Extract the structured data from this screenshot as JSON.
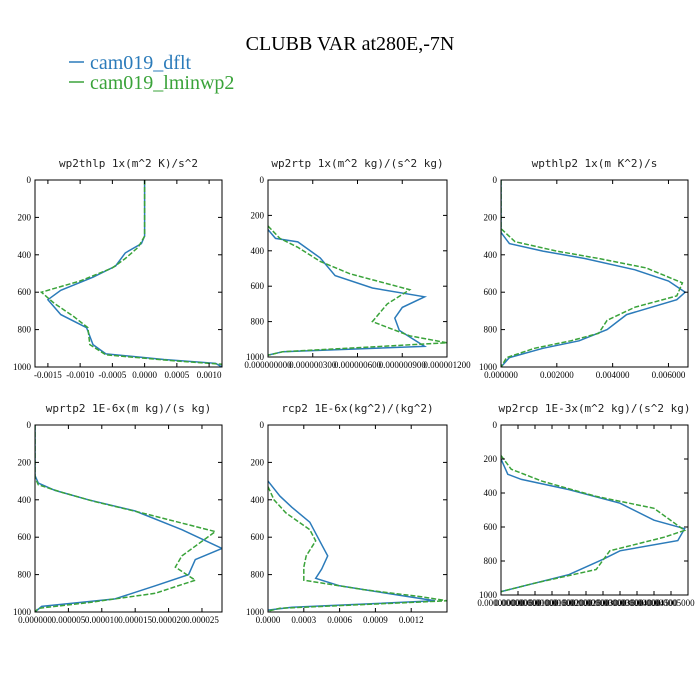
{
  "figure": {
    "title": "CLUBB VAR at280E,-7N",
    "legend": [
      {
        "label": "cam019_dflt",
        "color": "#2b7bba",
        "dash": "none"
      },
      {
        "label": "cam019_lminwp2",
        "color": "#3aa33a",
        "dash": "dashed"
      }
    ]
  },
  "chart_data": [
    {
      "type": "line",
      "title": "wp2thlp  1x(m^2 K)/s^2",
      "xlim": [
        -0.0017,
        0.0012
      ],
      "ylim": [
        1000,
        0
      ],
      "xticks": [
        -0.0015,
        -0.001,
        -0.0005,
        0,
        0.0005,
        0.001
      ],
      "xticklabels": [
        "-0.0015",
        "-0.0010",
        "-0.0005",
        "0.0000",
        "0.0005",
        "0.0010"
      ],
      "yticks": [
        0,
        200,
        400,
        600,
        800,
        1000
      ],
      "series": [
        {
          "name": "cam019_dflt",
          "points": [
            [
              0,
              0
            ],
            [
              0,
              300
            ],
            [
              -5e-05,
              340
            ],
            [
              -0.0003,
              390
            ],
            [
              -0.00045,
              460
            ],
            [
              -0.0008,
              520
            ],
            [
              -0.0013,
              590
            ],
            [
              -0.0015,
              640
            ],
            [
              -0.0013,
              720
            ],
            [
              -0.0009,
              790
            ],
            [
              -0.0008,
              880
            ],
            [
              -0.0006,
              930
            ],
            [
              0.0003,
              960
            ],
            [
              0.0011,
              980
            ],
            [
              0.0012,
              1000
            ]
          ]
        },
        {
          "name": "cam019_lminwp2",
          "points": [
            [
              0,
              0
            ],
            [
              0,
              300
            ],
            [
              -0.0001,
              360
            ],
            [
              -0.0003,
              420
            ],
            [
              -0.0005,
              470
            ],
            [
              -0.001,
              540
            ],
            [
              -0.0016,
              600
            ],
            [
              -0.0014,
              660
            ],
            [
              -0.0011,
              730
            ],
            [
              -0.00088,
              790
            ],
            [
              -0.00085,
              880
            ],
            [
              -0.0006,
              935
            ],
            [
              0.0004,
              965
            ],
            [
              0.0012,
              985
            ],
            [
              0.0012,
              1000
            ]
          ]
        }
      ]
    },
    {
      "type": "line",
      "title": "wp2rtp  1x(m^2 kg)/(s^2 kg)",
      "xlim": [
        0,
        1.2e-06
      ],
      "ylim": [
        1000,
        0
      ],
      "xticks": [
        0,
        3e-07,
        6e-07,
        9e-07,
        1.2e-06
      ],
      "xticklabels": [
        "0.000000000",
        "0.000000300",
        "0.000000600",
        "0.000000900",
        "0.000001200"
      ],
      "yticks": [
        0,
        200,
        400,
        600,
        800,
        1000
      ],
      "series": [
        {
          "name": "cam019_dflt",
          "points": [
            [
              0,
              280
            ],
            [
              5e-08,
              330
            ],
            [
              2e-07,
              350
            ],
            [
              3.5e-07,
              440
            ],
            [
              4.5e-07,
              540
            ],
            [
              7e-07,
              610
            ],
            [
              1.05e-06,
              660
            ],
            [
              9e-07,
              720
            ],
            [
              8.5e-07,
              780
            ],
            [
              8.8e-07,
              850
            ],
            [
              1.05e-06,
              940
            ],
            [
              1e-07,
              970
            ],
            [
              0,
              990
            ]
          ]
        },
        {
          "name": "cam019_lminwp2",
          "points": [
            [
              0,
              260
            ],
            [
              8e-08,
              330
            ],
            [
              2e-07,
              380
            ],
            [
              3.5e-07,
              460
            ],
            [
              5.5e-07,
              530
            ],
            [
              9.5e-07,
              620
            ],
            [
              8e-07,
              700
            ],
            [
              7e-07,
              800
            ],
            [
              9.5e-07,
              880
            ],
            [
              1.2e-06,
              920
            ],
            [
              1e-07,
              970
            ],
            [
              0,
              990
            ]
          ]
        }
      ]
    },
    {
      "type": "line",
      "title": "wpthlp2  1x(m K^2)/s",
      "xlim": [
        0,
        0.0067
      ],
      "ylim": [
        1000,
        0
      ],
      "xticks": [
        0,
        0.002,
        0.004,
        0.006
      ],
      "xticklabels": [
        "0.000000",
        "0.002000",
        "0.004000",
        "0.006000"
      ],
      "yticks": [
        0,
        200,
        400,
        600,
        800,
        1000
      ],
      "series": [
        {
          "name": "cam019_dflt",
          "points": [
            [
              0,
              0
            ],
            [
              0,
              280
            ],
            [
              0.0003,
              340
            ],
            [
              0.0015,
              380
            ],
            [
              0.003,
              420
            ],
            [
              0.0048,
              480
            ],
            [
              0.006,
              540
            ],
            [
              0.0066,
              600
            ],
            [
              0.0063,
              640
            ],
            [
              0.0045,
              720
            ],
            [
              0.0038,
              800
            ],
            [
              0.0028,
              860
            ],
            [
              0.0015,
              900
            ],
            [
              0.0003,
              950
            ],
            [
              0,
              1000
            ]
          ]
        },
        {
          "name": "cam019_lminwp2",
          "points": [
            [
              0,
              0
            ],
            [
              0,
              260
            ],
            [
              0.0005,
              330
            ],
            [
              0.002,
              380
            ],
            [
              0.0035,
              420
            ],
            [
              0.0052,
              470
            ],
            [
              0.0065,
              550
            ],
            [
              0.0063,
              620
            ],
            [
              0.0048,
              680
            ],
            [
              0.0038,
              750
            ],
            [
              0.0035,
              820
            ],
            [
              0.0025,
              860
            ],
            [
              0.0012,
              900
            ],
            [
              0.0002,
              950
            ],
            [
              0,
              1000
            ]
          ]
        }
      ]
    },
    {
      "type": "line",
      "title": "wprtp2  1E-6x(m kg)/(s kg)",
      "xlim": [
        0,
        2.8e-05
      ],
      "ylim": [
        1000,
        0
      ],
      "xticks": [
        0,
        5e-06,
        1e-05,
        1.5e-05,
        2e-05,
        2.5e-05
      ],
      "xticklabels": [
        "0.000000",
        "0.000005",
        "0.000010",
        "0.000015",
        "0.000020",
        "0.000025"
      ],
      "yticks": [
        0,
        200,
        400,
        600,
        800,
        1000
      ],
      "series": [
        {
          "name": "cam019_dflt",
          "points": [
            [
              0,
              0
            ],
            [
              0,
              270
            ],
            [
              5e-07,
              310
            ],
            [
              3e-06,
              350
            ],
            [
              8e-06,
              400
            ],
            [
              1.5e-05,
              460
            ],
            [
              2.2e-05,
              560
            ],
            [
              2.8e-05,
              660
            ],
            [
              2.4e-05,
              720
            ],
            [
              2.3e-05,
              800
            ],
            [
              1.8e-05,
              860
            ],
            [
              1.2e-05,
              930
            ],
            [
              1e-06,
              970
            ],
            [
              0,
              1000
            ]
          ]
        },
        {
          "name": "cam019_lminwp2",
          "points": [
            [
              0,
              0
            ],
            [
              0,
              280
            ],
            [
              5e-07,
              320
            ],
            [
              4e-06,
              360
            ],
            [
              9e-06,
              410
            ],
            [
              1.6e-05,
              470
            ],
            [
              2.7e-05,
              570
            ],
            [
              2.2e-05,
              700
            ],
            [
              2.1e-05,
              760
            ],
            [
              2.4e-05,
              830
            ],
            [
              1.8e-05,
              900
            ],
            [
              8e-06,
              950
            ],
            [
              5e-07,
              980
            ],
            [
              0,
              1000
            ]
          ]
        }
      ]
    },
    {
      "type": "line",
      "title": "rcp2  1E-6x(kg^2)/(kg^2)",
      "xlim": [
        0,
        0.0015
      ],
      "ylim": [
        1000,
        0
      ],
      "xticks": [
        0,
        0.0003,
        0.0006,
        0.0009,
        0.0012
      ],
      "xticklabels": [
        "0.0000",
        "0.0003",
        "0.0006",
        "0.0009",
        "0.0012"
      ],
      "yticks": [
        0,
        200,
        400,
        600,
        800,
        1000
      ],
      "series": [
        {
          "name": "cam019_dflt",
          "points": [
            [
              0,
              300
            ],
            [
              0.0001,
              380
            ],
            [
              0.0002,
              440
            ],
            [
              0.00035,
              520
            ],
            [
              0.00045,
              640
            ],
            [
              0.0005,
              700
            ],
            [
              0.00045,
              770
            ],
            [
              0.0004,
              820
            ],
            [
              0.0006,
              860
            ],
            [
              0.0011,
              910
            ],
            [
              0.0014,
              940
            ],
            [
              0.0002,
              975
            ],
            [
              0,
              990
            ]
          ]
        },
        {
          "name": "cam019_lminwp2",
          "points": [
            [
              0,
              330
            ],
            [
              5e-05,
              400
            ],
            [
              0.00015,
              470
            ],
            [
              0.00035,
              560
            ],
            [
              0.0004,
              620
            ],
            [
              0.00032,
              700
            ],
            [
              0.0003,
              760
            ],
            [
              0.0003,
              830
            ],
            [
              0.0008,
              880
            ],
            [
              0.0013,
              920
            ],
            [
              0.0015,
              940
            ],
            [
              0.0001,
              980
            ],
            [
              0,
              995
            ]
          ]
        }
      ]
    },
    {
      "type": "line",
      "title": "wp2rcp  1E-3x(m^2 kg)/(s^2 kg)",
      "xlim": [
        0,
        5.5e-06
      ],
      "ylim": [
        1000,
        0
      ],
      "xticks": [
        0,
        5e-07,
        1e-06,
        1.5e-06,
        2e-06,
        2.5e-06,
        3e-06,
        3.5e-06,
        4e-06,
        4.5e-06,
        5e-06
      ],
      "xticklabels": [
        "0.000000000",
        "0.000000500",
        "0.000001000",
        "0.000001500",
        "0.000002000",
        "0.000002500",
        "0.000003000",
        "0.000003500",
        "0.000004000",
        "0.000004500",
        "0.000005000"
      ],
      "yticks": [
        0,
        200,
        400,
        600,
        800,
        1000
      ],
      "series": [
        {
          "name": "cam019_dflt",
          "points": [
            [
              0,
              200
            ],
            [
              2e-07,
              290
            ],
            [
              6e-07,
              320
            ],
            [
              2e-06,
              380
            ],
            [
              3.5e-06,
              460
            ],
            [
              4.5e-06,
              560
            ],
            [
              5.4e-06,
              610
            ],
            [
              5.2e-06,
              680
            ],
            [
              3.5e-06,
              740
            ],
            [
              3e-06,
              790
            ],
            [
              2e-06,
              880
            ],
            [
              8e-07,
              940
            ],
            [
              0,
              980
            ]
          ]
        },
        {
          "name": "cam019_lminwp2",
          "points": [
            [
              0,
              180
            ],
            [
              3e-07,
              260
            ],
            [
              1.2e-06,
              330
            ],
            [
              2.8e-06,
              420
            ],
            [
              4.5e-06,
              490
            ],
            [
              5.4e-06,
              620
            ],
            [
              4.8e-06,
              660
            ],
            [
              3.2e-06,
              740
            ],
            [
              2.8e-06,
              850
            ],
            [
              1e-06,
              930
            ],
            [
              0,
              980
            ]
          ]
        }
      ]
    }
  ]
}
